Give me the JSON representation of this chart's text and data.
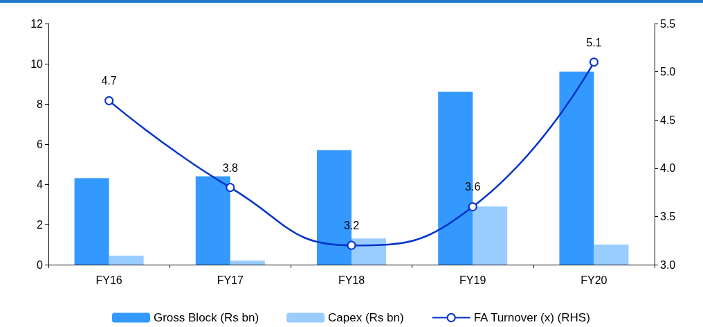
{
  "chart_data": {
    "type": "bar",
    "categories": [
      "FY16",
      "FY17",
      "FY18",
      "FY19",
      "FY20"
    ],
    "series": [
      {
        "name": "Gross Block (Rs bn)",
        "color": "#3399ff",
        "values": [
          4.3,
          4.4,
          5.7,
          8.6,
          9.6
        ]
      },
      {
        "name": "Capex (Rs bn)",
        "color": "#99ccff",
        "values": [
          0.45,
          0.2,
          1.3,
          2.9,
          1.0
        ]
      },
      {
        "name": "FA Turnover (x) (RHS)",
        "type": "line",
        "axis": "y2",
        "color": "#0033cc",
        "values": [
          4.7,
          3.8,
          3.2,
          3.6,
          5.1
        ],
        "data_labels": true,
        "marker": "circle"
      }
    ],
    "ylim": [
      0,
      12
    ],
    "yticks": [
      0,
      2,
      4,
      6,
      8,
      10,
      12
    ],
    "y2lim": [
      3.0,
      5.5
    ],
    "y2ticks": [
      {
        "value": 3.0,
        "label": "3.0"
      },
      {
        "value": 3.5,
        "label": "3.5"
      },
      {
        "value": 4.0,
        "label": "4.0"
      },
      {
        "value": 4.5,
        "label": "4.5"
      },
      {
        "value": 5.0,
        "label": "5.0"
      },
      {
        "value": 5.5,
        "label": "5.5"
      }
    ],
    "grid": false,
    "legend": "bottom"
  }
}
